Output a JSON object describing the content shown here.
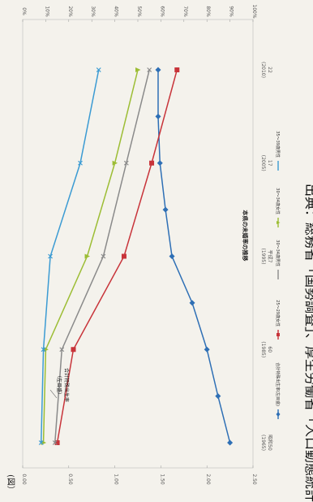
{
  "page": {
    "corner_mark": "(図）"
  },
  "chart_data": {
    "type": "line",
    "title": "本県の未婚率の推移",
    "categories": [
      [
        "昭和50",
        "(1965)"
      ],
      [
        "60",
        "(1985)"
      ],
      [
        "平成7",
        "(1995)"
      ],
      [
        "17",
        "(2005)"
      ],
      [
        "22",
        "(2010)"
      ]
    ],
    "y_left": {
      "ticks": [
        "2.50",
        "2.00",
        "1.50",
        "1.00",
        "0.50",
        "0.00"
      ],
      "range": [
        0,
        2.5
      ]
    },
    "y_right": {
      "ticks": [
        "100%",
        "90%",
        "80%",
        "70%",
        "60%",
        "50%",
        "40%",
        "30%",
        "20%",
        "10%",
        "0%"
      ],
      "range": [
        0,
        100
      ]
    },
    "series": [
      {
        "name": "合計特殊出生率(左目盛)",
        "axis": "left",
        "color": "#2e6fb5",
        "marker": "diamond",
        "x": [
          0,
          0.5,
          1,
          1.5,
          2,
          2.5,
          3,
          3.5,
          4
        ],
        "values": [
          2.25,
          2.12,
          2.0,
          1.84,
          1.62,
          1.55,
          1.49,
          1.47,
          1.47
        ]
      },
      {
        "name": "25～29歳女性",
        "axis": "right",
        "color": "#c8343a",
        "marker": "square",
        "x": [
          0,
          1,
          2,
          3,
          4
        ],
        "values": [
          15,
          22,
          44,
          56,
          67
        ]
      },
      {
        "name": "30～34歳男性",
        "axis": "right",
        "color": "#8a8a8a",
        "marker": "x",
        "x": [
          0,
          1,
          2,
          3,
          4
        ],
        "values": [
          14,
          17,
          35,
          45,
          55
        ]
      },
      {
        "name": "30～34歳女性",
        "axis": "right",
        "color": "#9cbd34",
        "marker": "triangle",
        "x": [
          0,
          1,
          2,
          3,
          4
        ],
        "values": [
          9,
          10,
          28,
          40,
          50
        ]
      },
      {
        "name": "35～39歳男性",
        "axis": "right",
        "color": "#3b9bd3",
        "marker": "x",
        "x": [
          0,
          1,
          2,
          3,
          4
        ],
        "values": [
          8,
          9,
          12,
          25,
          33
        ]
      }
    ],
    "annotation": {
      "lines": [
        "合計特殊出生率",
        "（左目盛）"
      ]
    },
    "source_note": "出典：総務省「国勢調査」、厚生労働省「人口動態統計」"
  }
}
